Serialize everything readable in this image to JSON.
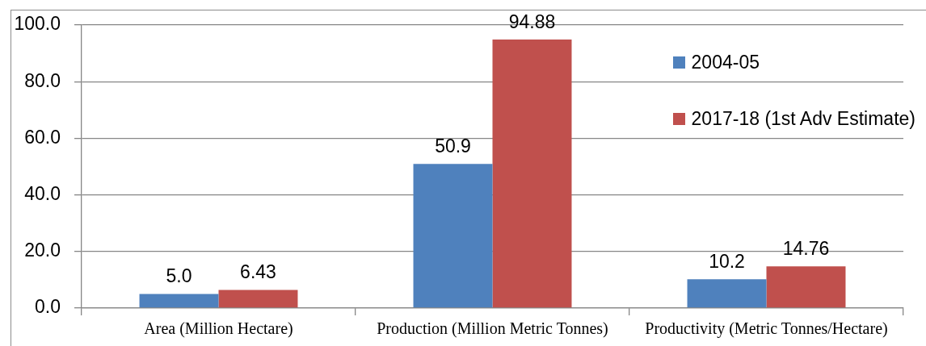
{
  "chart_data": {
    "type": "bar",
    "categories": [
      "Area (Million Hectare)",
      "Production (Million Metric Tonnes)",
      "Productivity (Metric Tonnes/Hectare)"
    ],
    "series": [
      {
        "name": "2004-05",
        "color": "#4f81bd",
        "values": [
          5.0,
          50.9,
          10.2
        ],
        "value_labels": [
          "5.0",
          "50.9",
          "10.2"
        ]
      },
      {
        "name": "2017-18 (1st Adv Estimate)",
        "color": "#c0504d",
        "values": [
          6.43,
          94.88,
          14.76
        ],
        "value_labels": [
          "6.43",
          "94.88",
          "14.76"
        ]
      }
    ],
    "ylim": [
      0,
      100
    ],
    "yticks": [
      {
        "value": 0,
        "label": "0.0"
      },
      {
        "value": 20,
        "label": "20.0"
      },
      {
        "value": 40,
        "label": "40.0"
      },
      {
        "value": 60,
        "label": "60.0"
      },
      {
        "value": 80,
        "label": "80.0"
      },
      {
        "value": 100,
        "label": "100.0"
      }
    ],
    "grid": "y",
    "legend": "top right"
  }
}
